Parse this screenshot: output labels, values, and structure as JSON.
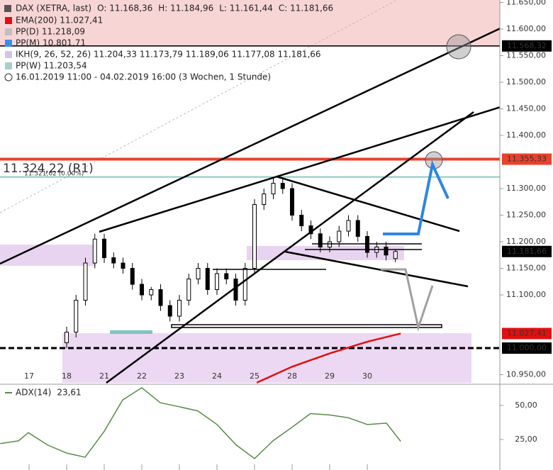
{
  "header": {
    "symbol": "DAX (XETRA, last)",
    "open": "O: 11.168,36",
    "high": "H: 11.184,96",
    "low": "L: 11.161,44",
    "close": "C: 11.181,66",
    "indicators": [
      {
        "text": "EMA(200)  11.027,41",
        "color": "#e01010"
      },
      {
        "text": "PP(D)  11.218,09",
        "color": "#c0c0c0"
      },
      {
        "text": "PP(M)  10.801,71",
        "color": "#3b8ee8"
      },
      {
        "text": "IKH(9, 26, 52, 26)  11.204,33  11.173,79  11.189,06  11.177,08  11.181,66",
        "color": "#d4c4ec"
      },
      {
        "text": "PP(W)  11.203,54",
        "color": "#a8d0c8"
      }
    ],
    "range": "16.01.2019 11:00 - 04.02.2019 16:00  (3 Wochen, 1 Stunde)"
  },
  "chart_data": [
    {
      "type": "candlestick",
      "x": [
        1,
        1.25,
        1.5,
        1.75,
        2,
        2.25,
        2.5,
        2.75,
        3,
        3.25,
        3.5,
        3.75,
        4,
        4.25,
        4.5,
        4.75,
        5,
        5.25,
        5.5,
        5.75,
        6,
        6.25,
        6.5,
        6.75,
        7,
        7.25,
        7.5,
        7.75,
        8,
        8.25,
        8.5,
        8.75,
        9,
        9.25,
        9.5,
        9.75
      ],
      "open": [
        11010,
        11030,
        11090,
        11160,
        11205,
        11170,
        11160,
        11150,
        11120,
        11100,
        11110,
        11080,
        11060,
        11090,
        11130,
        11150,
        11110,
        11140,
        11130,
        11090,
        11150,
        11270,
        11290,
        11310,
        11300,
        11250,
        11230,
        11215,
        11190,
        11200,
        11220,
        11240,
        11210,
        11180,
        11190,
        11168.36
      ],
      "high": [
        11040,
        11100,
        11170,
        11215,
        11215,
        11180,
        11170,
        11160,
        11130,
        11115,
        11120,
        11090,
        11100,
        11140,
        11160,
        11160,
        11150,
        11150,
        11140,
        11160,
        11280,
        11300,
        11320,
        11320,
        11310,
        11260,
        11240,
        11225,
        11210,
        11230,
        11250,
        11250,
        11220,
        11200,
        11200,
        11184.96
      ],
      "low": [
        11000,
        11020,
        11080,
        11150,
        11160,
        11150,
        11140,
        11110,
        11090,
        11090,
        11070,
        11050,
        11050,
        11080,
        11120,
        11100,
        11100,
        11120,
        11080,
        11080,
        11140,
        11260,
        11280,
        11290,
        11240,
        11220,
        11205,
        11180,
        11180,
        11190,
        11210,
        11200,
        11170,
        11170,
        11165,
        11161.44
      ],
      "close": [
        11030,
        11090,
        11160,
        11205,
        11170,
        11160,
        11150,
        11120,
        11100,
        11110,
        11080,
        11060,
        11090,
        11130,
        11150,
        11110,
        11140,
        11130,
        11090,
        11150,
        11270,
        11290,
        11310,
        11300,
        11250,
        11230,
        11215,
        11190,
        11200,
        11220,
        11240,
        11210,
        11180,
        11190,
        11175,
        11181.66
      ],
      "up_color": "#ffffff",
      "down_color": "#000000",
      "ema": {
        "x": [
          6.06,
          7,
          8,
          9,
          9.89
        ],
        "values": [
          10935,
          10965,
          10990,
          11012,
          11027.41
        ],
        "color": "#e01010"
      },
      "xlim": [
        -0.774,
        12.528
      ],
      "xticks": [
        {
          "value": 0,
          "label": "17"
        },
        {
          "value": 1,
          "label": "18"
        },
        {
          "value": 2,
          "label": "21"
        },
        {
          "value": 3,
          "label": "22"
        },
        {
          "value": 4,
          "label": "23"
        },
        {
          "value": 5,
          "label": "24"
        },
        {
          "value": 6,
          "label": "25"
        },
        {
          "value": 7,
          "label": "28"
        },
        {
          "value": 8,
          "label": "29"
        },
        {
          "value": 9,
          "label": "30"
        }
      ],
      "ylim": [
        10934.7,
        11654.7
      ],
      "yticks": [
        {
          "value": 11650,
          "label": "11.650,00"
        },
        {
          "value": 11600,
          "label": "11.600,00"
        },
        {
          "value": 11550,
          "label": "11.550,00"
        },
        {
          "value": 11500,
          "label": "11.500,00"
        },
        {
          "value": 11450,
          "label": "11.450,00"
        },
        {
          "value": 11400,
          "label": "11.400,00"
        },
        {
          "value": 11300,
          "label": "11.300,00"
        },
        {
          "value": 11250,
          "label": "11.250,00"
        },
        {
          "value": 11200,
          "label": "11.200,00"
        },
        {
          "value": 11150,
          "label": "11.150,00"
        },
        {
          "value": 11100,
          "label": "11.100,00"
        },
        {
          "value": 10950,
          "label": "10.950,00"
        }
      ],
      "levels": [
        {
          "value": 11568.32,
          "label": "11.568,32",
          "color": "#000000",
          "line": "solid"
        },
        {
          "value": 11355.33,
          "label": "11.355,33",
          "color": "#e8412c",
          "line": "thick"
        },
        {
          "value": 11181.66,
          "label": "11.181,66",
          "color": "#000000",
          "line": "none"
        },
        {
          "value": 11027.41,
          "label": "11.027,41",
          "color": "#e01010",
          "line": "none"
        },
        {
          "value": 11000,
          "label": "11.000,00",
          "color": "#000000",
          "line": "dashed"
        }
      ],
      "pivot": {
        "value": 11321.62,
        "label": "11.321,62 (0.00%)",
        "r1": "11.324,22 (R1)",
        "color": "#2a9d8f"
      }
    },
    {
      "type": "line",
      "name": "ADX(14)",
      "last_label": "23,61",
      "color": "#5a8a4a",
      "x": [
        -0.77,
        -0.28,
        -0.02,
        0.49,
        1,
        1.49,
        2,
        2.49,
        3,
        3.49,
        4,
        4.49,
        5,
        5.51,
        6,
        6.49,
        7,
        7.49,
        8,
        8.49,
        9,
        9.51,
        9.89
      ],
      "values": [
        22,
        24,
        30,
        21,
        15,
        12,
        31,
        54,
        63,
        52,
        49,
        46,
        36,
        21,
        11,
        24,
        34,
        44,
        43,
        41,
        36,
        37,
        23.61
      ],
      "xlim": [
        -0.774,
        12.528
      ],
      "ylim": [
        2.6,
        64
      ],
      "yticks": [
        {
          "value": 50,
          "label": "50,00"
        },
        {
          "value": 25,
          "label": "25,00"
        }
      ]
    }
  ]
}
